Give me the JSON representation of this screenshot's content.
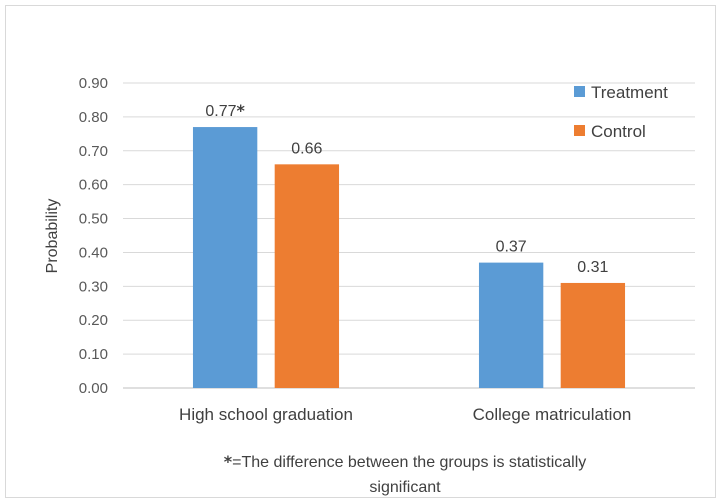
{
  "chart_data": {
    "type": "bar",
    "categories": [
      "High school graduation",
      "College matriculation"
    ],
    "series": [
      {
        "name": "Treatment",
        "values": [
          0.77,
          0.37
        ],
        "color": "#5b9bd5"
      },
      {
        "name": "Control",
        "values": [
          0.66,
          0.31
        ],
        "color": "#ed7d31"
      }
    ],
    "data_labels": [
      [
        "0.77",
        "0.37"
      ],
      [
        "0.66",
        "0.31"
      ]
    ],
    "significance_marker": {
      "series": 0,
      "category": 0,
      "symbol": "*"
    },
    "ylabel": "Probability",
    "ylim": [
      0,
      0.9
    ],
    "yticks": [
      "0.00",
      "0.10",
      "0.20",
      "0.30",
      "0.40",
      "0.50",
      "0.60",
      "0.70",
      "0.80",
      "0.90"
    ],
    "grid": true,
    "legend_position": "top-right",
    "footnote": {
      "symbol": "*",
      "line1": "=The difference between the groups is statistically",
      "line2": "significant"
    }
  }
}
